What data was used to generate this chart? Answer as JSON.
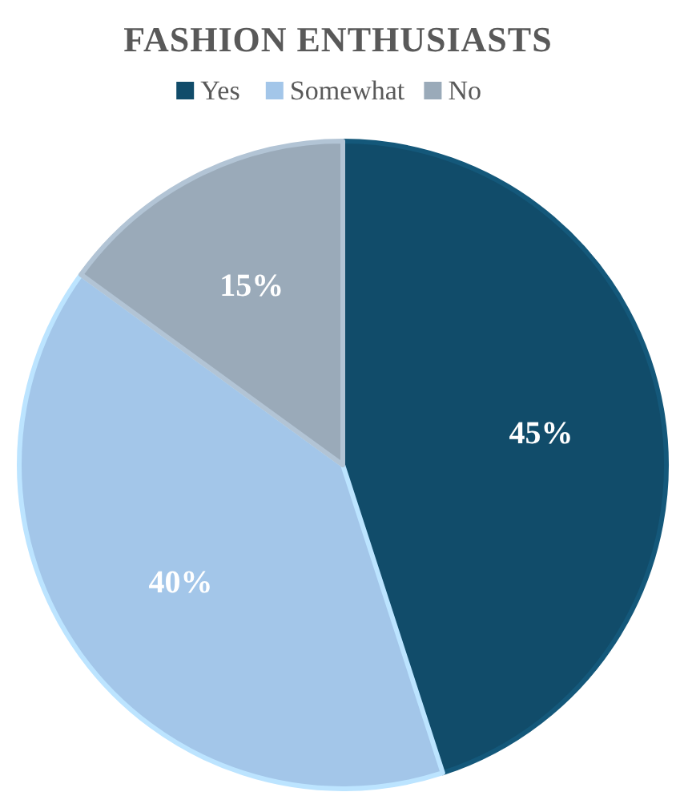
{
  "chart_data": {
    "type": "pie",
    "title": "FASHION ENTHUSIASTS",
    "categories": [
      "Yes",
      "Somewhat",
      "No"
    ],
    "values": [
      45,
      40,
      15
    ],
    "colors": [
      "#114c6a",
      "#a3c6e9",
      "#9aaab9"
    ],
    "value_labels": [
      "45%",
      "40%",
      "15%"
    ],
    "legend": "top"
  }
}
